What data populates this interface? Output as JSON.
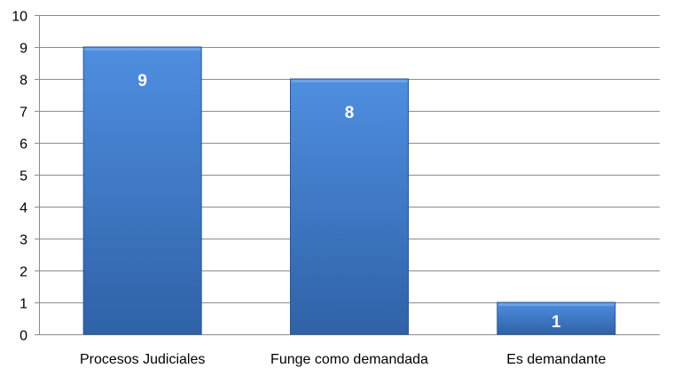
{
  "chart_data": {
    "type": "bar",
    "title": "",
    "xlabel": "",
    "ylabel": "",
    "categories": [
      "Procesos Judiciales",
      "Funge como demandada",
      "Es demandante"
    ],
    "values": [
      9,
      8,
      1
    ],
    "data_labels": [
      "9",
      "8",
      "1"
    ],
    "ylim": [
      0,
      10
    ],
    "yticks": [
      0,
      1,
      2,
      3,
      4,
      5,
      6,
      7,
      8,
      9,
      10
    ],
    "grid": true,
    "legend": "none",
    "colors": {
      "bar_light": "#4f8ee0",
      "bar_dark": "#2f62a8",
      "bar_edge": "#2a5590",
      "grid": "#8c8c8c",
      "axis": "#8c8c8c"
    }
  }
}
